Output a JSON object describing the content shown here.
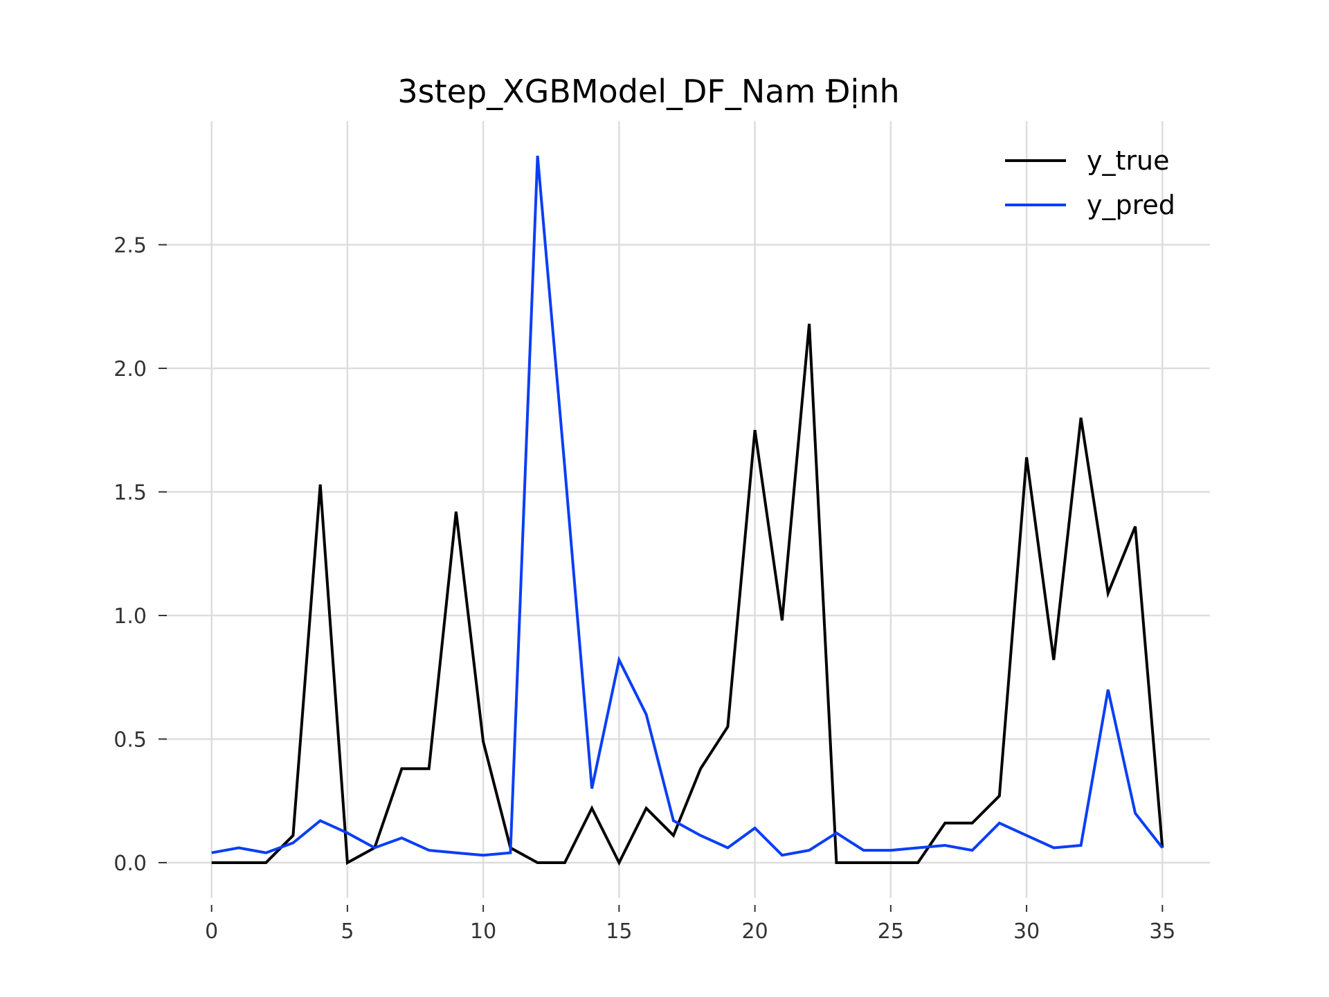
{
  "chart_data": {
    "type": "line",
    "title": "3step_XGBModel_DF_Nam Định",
    "xlabel": "",
    "ylabel": "",
    "xlim": [
      -1.75,
      36.75
    ],
    "ylim": [
      -0.143,
      3.0
    ],
    "x_ticks": [
      0,
      5,
      10,
      15,
      20,
      25,
      30,
      35
    ],
    "x_tick_labels": [
      "0",
      "5",
      "10",
      "15",
      "20",
      "25",
      "30",
      "35"
    ],
    "y_ticks": [
      0.0,
      0.5,
      1.0,
      1.5,
      2.0,
      2.5
    ],
    "y_tick_labels": [
      "0.0",
      "0.5",
      "1.0",
      "1.5",
      "2.0",
      "2.5"
    ],
    "grid": true,
    "legend_position": "top-right",
    "x": [
      0,
      1,
      2,
      3,
      4,
      5,
      6,
      7,
      8,
      9,
      10,
      11,
      12,
      13,
      14,
      15,
      16,
      17,
      18,
      19,
      20,
      21,
      22,
      23,
      24,
      25,
      26,
      27,
      28,
      29,
      30,
      31,
      32,
      33,
      34,
      35
    ],
    "series": [
      {
        "name": "y_true",
        "color": "#000000",
        "values": [
          0,
          0,
          0,
          0.11,
          1.53,
          0,
          0.06,
          0.38,
          0.38,
          1.42,
          0.49,
          0.06,
          0,
          0,
          0.22,
          0,
          0.22,
          0.11,
          0.38,
          0.55,
          1.75,
          0.98,
          2.18,
          0,
          0,
          0,
          0,
          0.16,
          0.16,
          0.27,
          1.64,
          0.82,
          1.8,
          1.09,
          1.36,
          0.06
        ]
      },
      {
        "name": "y_pred",
        "color": "#0a3ef5",
        "values": [
          0.04,
          0.06,
          0.04,
          0.08,
          0.17,
          0.12,
          0.06,
          0.1,
          0.05,
          0.04,
          0.03,
          0.04,
          2.86,
          1.6,
          0.3,
          0.82,
          0.6,
          0.17,
          0.11,
          0.06,
          0.14,
          0.03,
          0.05,
          0.12,
          0.05,
          0.05,
          0.06,
          0.07,
          0.05,
          0.16,
          0.11,
          0.06,
          0.07,
          0.7,
          0.2,
          0.06
        ]
      }
    ]
  }
}
